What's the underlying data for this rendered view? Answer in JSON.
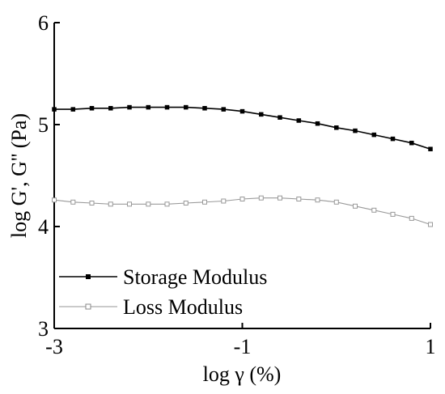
{
  "chart_data": {
    "type": "line",
    "xlabel": "log γ (%)",
    "ylabel": "log G', G'' (Pa)",
    "xlim": [
      -3,
      1
    ],
    "ylim": [
      3,
      6
    ],
    "xticks": [
      -3,
      -1,
      1
    ],
    "yticks": [
      3,
      4,
      5,
      6
    ],
    "xtick_labels": [
      "-3",
      "-1",
      "1"
    ],
    "ytick_labels": [
      "3",
      "4",
      "5",
      "6"
    ],
    "grid": false,
    "legend_position": "bottom-left",
    "series": [
      {
        "name": "Storage Modulus",
        "color": "#000000",
        "marker": "filled-square",
        "x": [
          -3.0,
          -2.8,
          -2.6,
          -2.4,
          -2.2,
          -2.0,
          -1.8,
          -1.6,
          -1.4,
          -1.2,
          -1.0,
          -0.8,
          -0.6,
          -0.4,
          -0.2,
          0.0,
          0.2,
          0.4,
          0.6,
          0.8,
          1.0
        ],
        "y": [
          5.15,
          5.15,
          5.16,
          5.16,
          5.17,
          5.17,
          5.17,
          5.17,
          5.16,
          5.15,
          5.13,
          5.1,
          5.07,
          5.04,
          5.01,
          4.97,
          4.94,
          4.9,
          4.86,
          4.82,
          4.76
        ]
      },
      {
        "name": "Loss Modulus",
        "color": "#999999",
        "marker": "open-square",
        "x": [
          -3.0,
          -2.8,
          -2.6,
          -2.4,
          -2.2,
          -2.0,
          -1.8,
          -1.6,
          -1.4,
          -1.2,
          -1.0,
          -0.8,
          -0.6,
          -0.4,
          -0.2,
          0.0,
          0.2,
          0.4,
          0.6,
          0.8,
          1.0
        ],
        "y": [
          4.26,
          4.24,
          4.23,
          4.22,
          4.22,
          4.22,
          4.22,
          4.23,
          4.24,
          4.25,
          4.27,
          4.28,
          4.28,
          4.27,
          4.26,
          4.24,
          4.2,
          4.16,
          4.12,
          4.08,
          4.02
        ]
      }
    ]
  }
}
